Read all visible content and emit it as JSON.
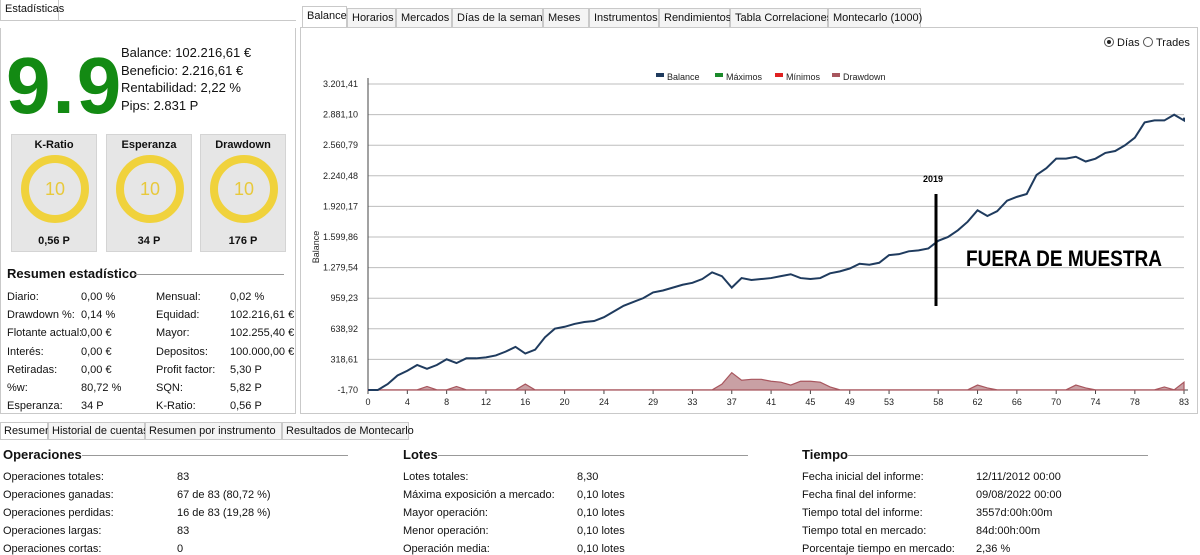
{
  "left_tab": "Estadísticas",
  "score": "9.9",
  "summary": {
    "balance": "Balance:  102.216,61 €",
    "beneficio": "Beneficio: 2.216,61 €",
    "rentabilidad": "Rentabilidad: 2,22 %",
    "pips": "Pips: 2.831 P"
  },
  "gauges": [
    {
      "title": "K-Ratio",
      "score": "10",
      "value": "0,56 P"
    },
    {
      "title": "Esperanza",
      "score": "10",
      "value": "34 P"
    },
    {
      "title": "Drawdown",
      "score": "10",
      "value": "176 P"
    }
  ],
  "stats_title": "Resumen estadístico",
  "stats_left": [
    {
      "label": "Diario:",
      "value": "0,00 %"
    },
    {
      "label": "Drawdown %:",
      "value": "0,14 %"
    },
    {
      "label": "Flotante actual:",
      "value": "0,00 €"
    },
    {
      "label": "Interés:",
      "value": "0,00 €"
    },
    {
      "label": "Retiradas:",
      "value": "0,00 €"
    },
    {
      "label": "%w:",
      "value": "80,72 %"
    },
    {
      "label": "Esperanza:",
      "value": "34 P"
    }
  ],
  "stats_right": [
    {
      "label": "Mensual:",
      "value": "0,02 %"
    },
    {
      "label": "Equidad:",
      "value": "102.216,61 €"
    },
    {
      "label": "Mayor:",
      "value": "102.255,40 €"
    },
    {
      "label": "Depositos:",
      "value": "100.000,00 €"
    },
    {
      "label": "Profit factor:",
      "value": "5,30 P"
    },
    {
      "label": "SQN:",
      "value": "5,82 P"
    },
    {
      "label": "K-Ratio:",
      "value": "0,56 P"
    }
  ],
  "top_tabs": [
    "Balance",
    "Horarios",
    "Mercados",
    "Días de la semana",
    "Meses",
    "Instrumentos",
    "Rendimientos",
    "Tabla Correlaciones",
    "Montecarlo (1000)"
  ],
  "radio": {
    "dias": "Días",
    "trades": "Trades"
  },
  "annotation": {
    "year": "2019",
    "text": "FUERA DE MUESTRA"
  },
  "chart_data": {
    "type": "line",
    "ylabel": "Balance",
    "legend": [
      "Balance",
      "Máximos",
      "Mínimos",
      "Drawdown"
    ],
    "legend_colors": [
      "#1f3b5e",
      "#1a8a2a",
      "#e02020",
      "#a8565e"
    ],
    "yticks": [
      "3.201,41",
      "2.881,10",
      "2.560,79",
      "2.240,48",
      "1.920,17",
      "1.599,86",
      "1.279,54",
      "959,23",
      "638,92",
      "318,61",
      "-1,70"
    ],
    "ytick_values": [
      3201.41,
      2881.1,
      2560.79,
      2240.48,
      1920.17,
      1599.86,
      1279.54,
      959.23,
      638.92,
      318.61,
      -1.7
    ],
    "xticks": [
      "0",
      "4",
      "8",
      "12",
      "16",
      "20",
      "24",
      "29",
      "33",
      "37",
      "41",
      "45",
      "49",
      "53",
      "58",
      "62",
      "66",
      "70",
      "74",
      "78",
      "83"
    ],
    "ylim": [
      -1.7,
      3201.41
    ],
    "xlim": [
      0,
      83
    ],
    "grid": "horizontal",
    "balance": [
      [
        0,
        -1.7
      ],
      [
        1,
        -1.7
      ],
      [
        2,
        60
      ],
      [
        3,
        150
      ],
      [
        4,
        200
      ],
      [
        5,
        260
      ],
      [
        6,
        220
      ],
      [
        7,
        260
      ],
      [
        8,
        320
      ],
      [
        9,
        280
      ],
      [
        10,
        330
      ],
      [
        11,
        330
      ],
      [
        12,
        340
      ],
      [
        13,
        360
      ],
      [
        14,
        400
      ],
      [
        15,
        450
      ],
      [
        16,
        380
      ],
      [
        17,
        420
      ],
      [
        18,
        550
      ],
      [
        19,
        640
      ],
      [
        20,
        660
      ],
      [
        21,
        690
      ],
      [
        22,
        710
      ],
      [
        23,
        720
      ],
      [
        24,
        760
      ],
      [
        25,
        820
      ],
      [
        26,
        880
      ],
      [
        27,
        920
      ],
      [
        28,
        960
      ],
      [
        29,
        1020
      ],
      [
        30,
        1040
      ],
      [
        31,
        1070
      ],
      [
        32,
        1100
      ],
      [
        33,
        1120
      ],
      [
        34,
        1160
      ],
      [
        35,
        1230
      ],
      [
        36,
        1190
      ],
      [
        37,
        1070
      ],
      [
        38,
        1170
      ],
      [
        39,
        1150
      ],
      [
        40,
        1160
      ],
      [
        41,
        1170
      ],
      [
        42,
        1190
      ],
      [
        43,
        1210
      ],
      [
        44,
        1170
      ],
      [
        45,
        1160
      ],
      [
        46,
        1170
      ],
      [
        47,
        1220
      ],
      [
        48,
        1240
      ],
      [
        49,
        1270
      ],
      [
        50,
        1320
      ],
      [
        51,
        1310
      ],
      [
        52,
        1330
      ],
      [
        53,
        1410
      ],
      [
        54,
        1420
      ],
      [
        55,
        1450
      ],
      [
        56,
        1460
      ],
      [
        57,
        1480
      ],
      [
        58,
        1560
      ],
      [
        59,
        1600
      ],
      [
        60,
        1670
      ],
      [
        61,
        1760
      ],
      [
        62,
        1880
      ],
      [
        63,
        1820
      ],
      [
        64,
        1870
      ],
      [
        65,
        1980
      ],
      [
        66,
        2020
      ],
      [
        67,
        2050
      ],
      [
        68,
        2250
      ],
      [
        69,
        2320
      ],
      [
        70,
        2420
      ],
      [
        71,
        2420
      ],
      [
        72,
        2440
      ],
      [
        73,
        2390
      ],
      [
        74,
        2420
      ],
      [
        75,
        2480
      ],
      [
        76,
        2500
      ],
      [
        77,
        2560
      ],
      [
        78,
        2640
      ],
      [
        79,
        2800
      ],
      [
        80,
        2820
      ],
      [
        81,
        2820
      ],
      [
        82,
        2880
      ],
      [
        83,
        2820
      ],
      [
        84,
        2850
      ]
    ],
    "drawdown": [
      [
        0,
        0
      ],
      [
        5,
        0
      ],
      [
        6,
        35
      ],
      [
        7,
        0
      ],
      [
        8,
        0
      ],
      [
        9,
        35
      ],
      [
        10,
        0
      ],
      [
        15,
        0
      ],
      [
        16,
        60
      ],
      [
        17,
        0
      ],
      [
        35,
        0
      ],
      [
        36,
        60
      ],
      [
        37,
        180
      ],
      [
        38,
        100
      ],
      [
        39,
        110
      ],
      [
        40,
        110
      ],
      [
        41,
        90
      ],
      [
        42,
        80
      ],
      [
        43,
        50
      ],
      [
        44,
        90
      ],
      [
        45,
        90
      ],
      [
        46,
        80
      ],
      [
        47,
        30
      ],
      [
        48,
        0
      ],
      [
        61,
        0
      ],
      [
        62,
        50
      ],
      [
        63,
        20
      ],
      [
        64,
        0
      ],
      [
        71,
        0
      ],
      [
        72,
        50
      ],
      [
        73,
        20
      ],
      [
        74,
        0
      ],
      [
        80,
        0
      ],
      [
        81,
        30
      ],
      [
        82,
        0
      ],
      [
        83,
        80
      ],
      [
        84,
        40
      ]
    ]
  },
  "bottom_tabs": [
    "Resumen",
    "Historial de cuentas",
    "Resumen por instrumento",
    "Resultados de Montecarlo"
  ],
  "operaciones": {
    "title": "Operaciones",
    "rows": [
      {
        "label": "Operaciones totales:",
        "value": "83"
      },
      {
        "label": "Operaciones ganadas:",
        "value": "67 de 83 (80,72 %)"
      },
      {
        "label": "Operaciones perdidas:",
        "value": "16 de 83 (19,28 %)"
      },
      {
        "label": "Operaciones largas:",
        "value": "83"
      },
      {
        "label": "Operaciones cortas:",
        "value": "0"
      }
    ]
  },
  "lotes": {
    "title": "Lotes",
    "rows": [
      {
        "label": "Lotes totales:",
        "value": "8,30"
      },
      {
        "label": "Máxima exposición a mercado:",
        "value": "0,10 lotes"
      },
      {
        "label": "Mayor operación:",
        "value": "0,10 lotes"
      },
      {
        "label": "Menor operación:",
        "value": "0,10 lotes"
      },
      {
        "label": "Operación media:",
        "value": "0,10 lotes"
      }
    ]
  },
  "tiempo": {
    "title": "Tiempo",
    "rows": [
      {
        "label": "Fecha inicial del informe:",
        "value": "12/11/2012 00:00"
      },
      {
        "label": "Fecha final del informe:",
        "value": "09/08/2022 00:00"
      },
      {
        "label": "Tiempo total del informe:",
        "value": "3557d:00h:00m"
      },
      {
        "label": "Tiempo total en mercado:",
        "value": "84d:00h:00m"
      },
      {
        "label": "Porcentaje tiempo en mercado:",
        "value": "2,36 %"
      }
    ]
  }
}
